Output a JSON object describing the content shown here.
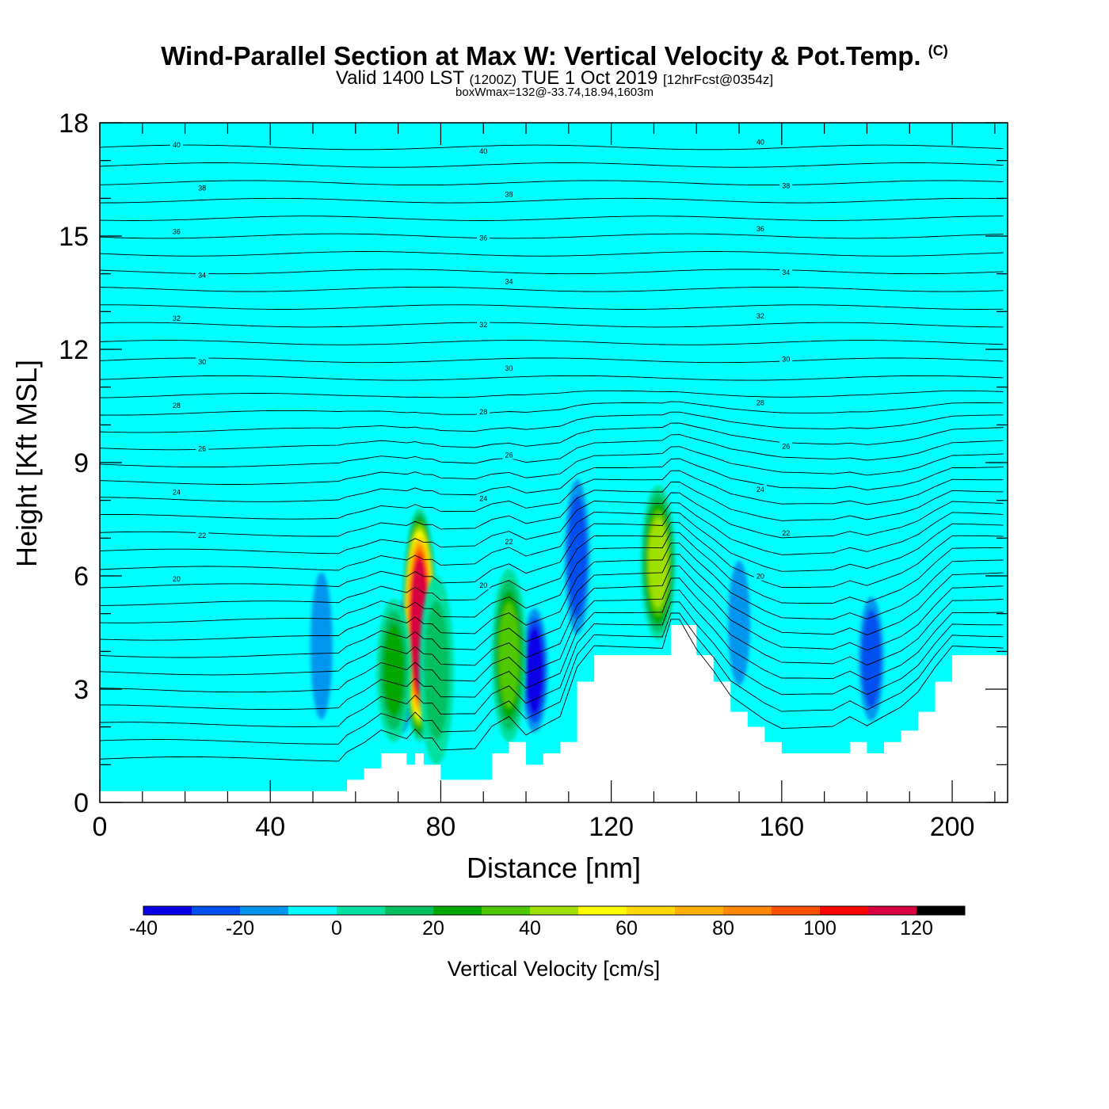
{
  "header": {
    "title": "Wind-Parallel Section at Max W: Vertical Velocity & Pot.Temp.",
    "copyright_mark": "(C)",
    "valid_prefix": "Valid 1400 LST",
    "valid_utc": "(1200Z)",
    "valid_date": "TUE 1 Oct 2019",
    "forecast": "[12hrFcst@0354z]",
    "box_info": "boxWmax=132@-33.74,18.94,1603m"
  },
  "colors": {
    "background_field": "#00ffff",
    "terrain": "#ffffff",
    "contour_line": "#000000",
    "palette": [
      "#0a00e8",
      "#0050f0",
      "#0096f0",
      "#00ffff",
      "#00e0a0",
      "#00c060",
      "#00a800",
      "#50c800",
      "#a0e000",
      "#ffff00",
      "#ffd800",
      "#ffb000",
      "#ff8800",
      "#ff5000",
      "#ff0000",
      "#d80040"
    ]
  },
  "chart_data": {
    "type": "heatmap",
    "xlabel": "Distance [nm]",
    "ylabel": "Height [Kft MSL]",
    "xlim": [
      0,
      213
    ],
    "ylim": [
      0,
      18
    ],
    "x_ticks": [
      "0",
      "40",
      "80",
      "120",
      "160",
      "200"
    ],
    "y_ticks": [
      "0",
      "3",
      "6",
      "9",
      "12",
      "15",
      "18"
    ],
    "grid": false,
    "field_variable": "Vertical Velocity",
    "contour_variable": "Potential Temperature",
    "terrain_profile": {
      "x": [
        0,
        50,
        56,
        58,
        62,
        66,
        72,
        74,
        76,
        78,
        80,
        84,
        88,
        92,
        96,
        100,
        104,
        108,
        112,
        116,
        120,
        124,
        128,
        132,
        134,
        136,
        140,
        144,
        148,
        152,
        156,
        160,
        164,
        168,
        172,
        176,
        180,
        184,
        188,
        192,
        196,
        200,
        204,
        208,
        213
      ],
      "height": [
        0.3,
        0.3,
        0.3,
        0.6,
        0.9,
        1.3,
        1.0,
        1.3,
        1.0,
        1.0,
        0.6,
        0.6,
        0.6,
        1.3,
        1.6,
        1.0,
        1.3,
        1.6,
        3.2,
        3.9,
        3.9,
        3.9,
        3.9,
        3.9,
        4.7,
        4.7,
        3.9,
        3.2,
        2.4,
        2.0,
        1.6,
        1.3,
        1.3,
        1.3,
        1.3,
        1.6,
        1.3,
        1.6,
        1.9,
        2.4,
        3.2,
        3.9,
        3.9,
        3.9,
        3.9
      ]
    },
    "updrafts": [
      {
        "x": 75,
        "bottom": 1.6,
        "top": 7.8,
        "max_w": 132
      },
      {
        "x": 96,
        "bottom": 1.6,
        "top": 6.2,
        "max_w": 40
      },
      {
        "x": 131,
        "bottom": 4.3,
        "top": 8.4,
        "max_w": 50
      },
      {
        "x": 69,
        "bottom": 1.6,
        "top": 5.4,
        "max_w": 30
      },
      {
        "x": 79,
        "bottom": 1.0,
        "top": 6.0,
        "max_w": 20
      }
    ],
    "downdrafts": [
      {
        "x": 71,
        "bottom": 1.6,
        "top": 5.6,
        "min_w": -40
      },
      {
        "x": 102,
        "bottom": 1.6,
        "top": 5.4,
        "min_w": -35
      },
      {
        "x": 112,
        "bottom": 4.0,
        "top": 9.0,
        "min_w": -30
      },
      {
        "x": 181,
        "bottom": 1.8,
        "top": 5.8,
        "min_w": -30
      },
      {
        "x": 52,
        "bottom": 1.5,
        "top": 6.8,
        "min_w": -15
      },
      {
        "x": 150,
        "bottom": 2.5,
        "top": 7.0,
        "min_w": -15
      }
    ],
    "isentrope_labels": [
      "40",
      "38",
      "36",
      "34",
      "32",
      "30",
      "28",
      "26",
      "24",
      "22",
      "20"
    ],
    "colorbar": {
      "title": "Vertical Velocity [cm/s]",
      "levels": [
        -40,
        -30,
        -20,
        -10,
        0,
        10,
        20,
        30,
        40,
        50,
        60,
        70,
        80,
        90,
        100,
        110,
        120,
        130
      ],
      "tick_labels": [
        "-40",
        "-20",
        "0",
        "20",
        "40",
        "60",
        "80",
        "100",
        "120"
      ]
    }
  }
}
